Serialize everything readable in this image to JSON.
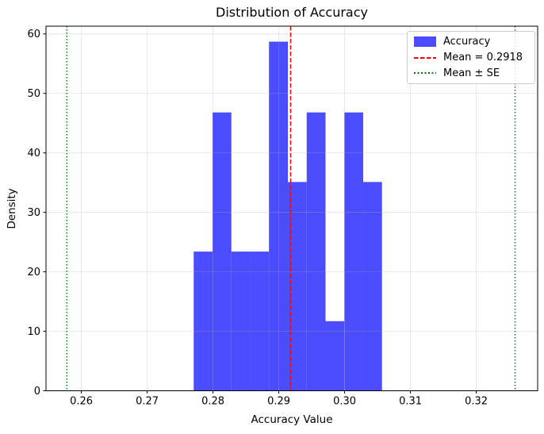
{
  "chart_data": {
    "type": "bar",
    "subtype": "density-histogram",
    "title": "Distribution of Accuracy",
    "xlabel": "Accuracy Value",
    "ylabel": "Density",
    "bin_edges": [
      0.27707,
      0.27993,
      0.28279,
      0.28565,
      0.28851,
      0.29138,
      0.29424,
      0.2971,
      0.29996,
      0.30282,
      0.30568
    ],
    "densities": [
      23.4,
      46.8,
      23.4,
      23.4,
      58.7,
      35.1,
      46.8,
      11.7,
      46.8,
      35.1
    ],
    "mean": 0.2918,
    "se_lower": 0.2578,
    "se_upper": 0.3259,
    "xlim": [
      0.25463,
      0.32933
    ],
    "ylim": [
      0,
      61.3
    ],
    "xtick_values": [
      0.26,
      0.27,
      0.28,
      0.29,
      0.3,
      0.31,
      0.32
    ],
    "xtick_labels": [
      "0.26",
      "0.27",
      "0.28",
      "0.29",
      "0.30",
      "0.31",
      "0.32"
    ],
    "ytick_values": [
      0,
      10,
      20,
      30,
      40,
      50,
      60
    ],
    "ytick_labels": [
      "0",
      "10",
      "20",
      "30",
      "40",
      "50",
      "60"
    ],
    "grid": true,
    "legend": {
      "position": "upper-right",
      "entries": [
        {
          "label": "Accuracy",
          "swatch": "patch",
          "color": "#0000ff"
        },
        {
          "label": "Mean = 0.2918",
          "swatch": "dashed-line",
          "color": "#ff0000"
        },
        {
          "label": "Mean ± SE",
          "swatch": "dotted-line",
          "color": "#008000"
        }
      ]
    },
    "colors": {
      "bar_fill": "#0000ff",
      "bar_opacity": 0.7,
      "bar_rendered": "#4c4cff",
      "mean_line": "#ff0000",
      "se_line": "#008000",
      "grid_line": "#b0b0b0",
      "grid_opacity": 0.3,
      "axes_frame": "#000000",
      "background": "#ffffff"
    }
  }
}
